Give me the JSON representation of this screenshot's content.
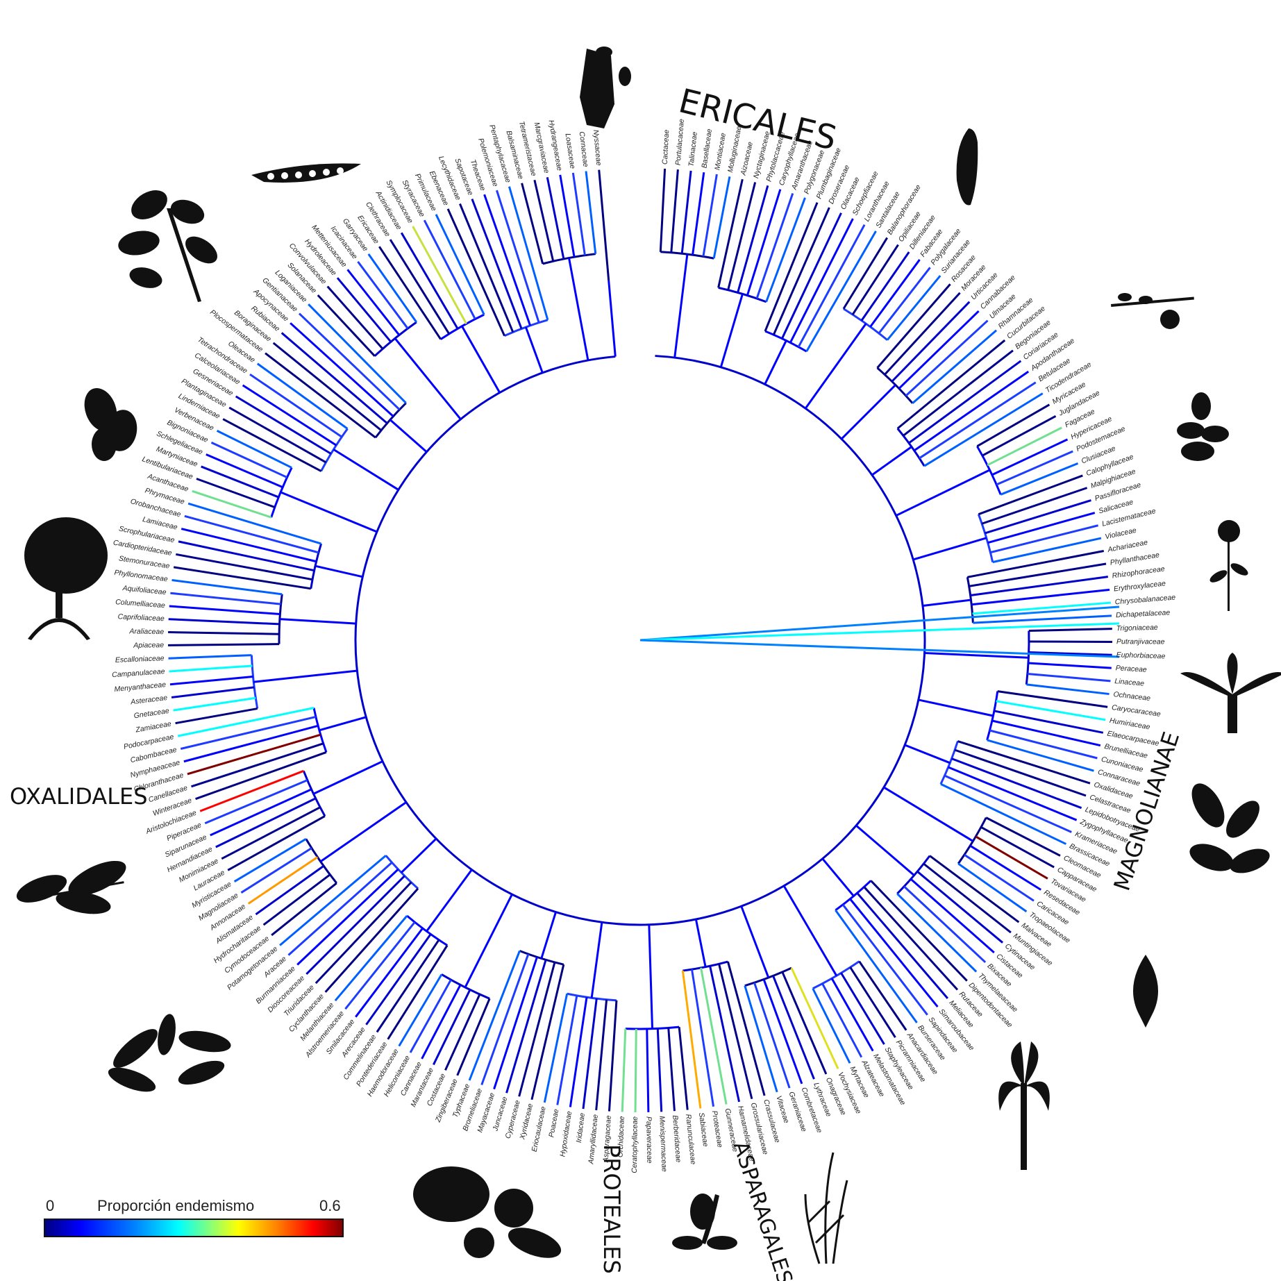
{
  "clades": {
    "ericales": "ERICALES",
    "oxalidales": "OXALIDALES",
    "magnolianae": "MAGNOLIANAE",
    "proteales": "PROTEALES",
    "asparagales": "ASPARAGALES"
  },
  "legend": {
    "min": "0",
    "max": "0.6",
    "title": "Proporción endemismo",
    "colors": [
      "#000080",
      "#0000ff",
      "#0080ff",
      "#00ffff",
      "#80ff80",
      "#ffff00",
      "#ff8000",
      "#ff0000",
      "#800000"
    ]
  },
  "families": [
    "Cactaceae",
    "Portulacaceae",
    "Talinaceae",
    "Basellaceae",
    "Montiaceae",
    "Molluginaceae",
    "Aizoaceae",
    "Nyctaginaceae",
    "Phytolaccaceae",
    "Caryophyllaceae",
    "Amaranthaceae",
    "Polygonaceae",
    "Plumbaginaceae",
    "Droseraceae",
    "Olacaceae",
    "Schoepfiaceae",
    "Loranthaceae",
    "Santalaceae",
    "Balanophoraceae",
    "Opiliaceae",
    "Dilleniaceae",
    "Fabaceae",
    "Polygalaceae",
    "Surianaceae",
    "Rosaceae",
    "Moraceae",
    "Urticaceae",
    "Cannabaceae",
    "Ulmaceae",
    "Rhamnaceae",
    "Cucurbitaceae",
    "Begoniaceae",
    "Coriariaceae",
    "Apodanthaceae",
    "Betulaceae",
    "Ticodendraceae",
    "Myricaceae",
    "Juglandaceae",
    "Fagaceae",
    "Hypericaceae",
    "Podostemaceae",
    "Clusiaceae",
    "Calophyllaceae",
    "Malpighiaceae",
    "Passifloraceae",
    "Salicaceae",
    "Lacistemataceae",
    "Violaceae",
    "Achariaceae",
    "Phyllanthaceae",
    "Rhizophoraceae",
    "Erythroxylaceae",
    "Chrysobalanaceae",
    "Dichapetalaceae",
    "Trigoniaceae",
    "Putranjivaceae",
    "Euphorbiaceae",
    "Peraceae",
    "Linaceae",
    "Ochnaceae",
    "Caryocaraceae",
    "Humiriaceae",
    "Elaeocarpaceae",
    "Brunelliaceae",
    "Cunoniaceae",
    "Connaraceae",
    "Oxalidaceae",
    "Celastraceae",
    "Lepidobotryaceae",
    "Zygophyllaceae",
    "Krameriaceae",
    "Brassicaceae",
    "Cleomaceae",
    "Capparaceae",
    "Tovariaceae",
    "Resedaceae",
    "Caricaceae",
    "Tropaeolaceae",
    "Malvaceae",
    "Muntingiaceae",
    "Cytinaceae",
    "Cistaceae",
    "Bixaceae",
    "Thymelaeaceae",
    "Dipentodontaceae",
    "Rutaceae",
    "Meliaceae",
    "Simaroubaceae",
    "Sapindaceae",
    "Burseraceae",
    "Anacardiaceae",
    "Picramniaceae",
    "Staphyleaceae",
    "Melastomataceae",
    "Alzateaceae",
    "Myrtaceae",
    "Vochysiaceae",
    "Onagraceae",
    "Lythraceae",
    "Combretaceae",
    "Geraniaceae",
    "Vitaceae",
    "Crassulaceae",
    "Grossulariaceae",
    "Hamamelidaceae",
    "Gunneraceae",
    "Proteaceae",
    "Sabiaceae",
    "Ranunculaceae",
    "Berberidaceae",
    "Menispermaceae",
    "Papaveraceae",
    "Ceratophyllaceae",
    "Orchidaceae",
    "Asparagaceae",
    "Amaryllidaceae",
    "Iridaceae",
    "Hypoxidaceae",
    "Poaceae",
    "Eriocaulaceae",
    "Xyridaceae",
    "Cyperaceae",
    "Juncaceae",
    "Mayacaceae",
    "Bromeliaceae",
    "Typhaceae",
    "Zingiberaceae",
    "Costaceae",
    "Marantaceae",
    "Cannaceae",
    "Heliconiaceae",
    "Haemodoraceae",
    "Pontederiaceae",
    "Commelinaceae",
    "Arecaceae",
    "Smilacaceae",
    "Alstroemeriaceae",
    "Melanthiaceae",
    "Cyclanthaceae",
    "Triuridaceae",
    "Dioscoreaceae",
    "Burmanniaceae",
    "Araceae",
    "Potamogetonaceae",
    "Cymodoceaceae",
    "Hydrocharitaceae",
    "Alismataceae",
    "Annonaceae",
    "Magnoliaceae",
    "Myristicaceae",
    "Lauraceae",
    "Monimiaceae",
    "Hernandiaceae",
    "Siparunaceae",
    "Piperaceae",
    "Aristolochiaceae",
    "Winteraceae",
    "Canellaceae",
    "Chloranthaceae",
    "Nymphaeaceae",
    "Cabombaceae",
    "Podocarpaceae",
    "Zamiaceae",
    "Gnetaceae",
    "Asteraceae",
    "Menyanthaceae",
    "Campanulaceae",
    "Escalloniaceae",
    "Apiaceae",
    "Araliaceae",
    "Caprifoliaceae",
    "Columelliaceae",
    "Aquifoliaceae",
    "Phyllonomaceae",
    "Stemonuraceae",
    "Cardiopteridaceae",
    "Scrophulariaceae",
    "Lamiaceae",
    "Orobanchaceae",
    "Phrymaceae",
    "Acanthaceae",
    "Lentibulariaceae",
    "Martyniaceae",
    "Schlegeliaceae",
    "Bignoniaceae",
    "Verbenaceae",
    "Linderniaceae",
    "Plantaginaceae",
    "Gesneriaceae",
    "Calceolariaceae",
    "Tetrachondraceae",
    "Oleaceae",
    "Plocospermataceae",
    "Boraginaceae",
    "Rubiaceae",
    "Apocynaceae",
    "Gentianaceae",
    "Loganiaceae",
    "Solanaceae",
    "Convolvulaceae",
    "Hydroleaceae",
    "Metteniusaceae",
    "Icacinaceae",
    "Garryaceae",
    "Ericaceae",
    "Clethraceae",
    "Actinidiaceae",
    "Symplocaceae",
    "Styracaceae",
    "Primulaceae",
    "Ebenaceae",
    "Lecythidaceae",
    "Sapotaceae",
    "Theaceae",
    "Polemoniaceae",
    "Pentaphylacaceae",
    "Balsaminaceae",
    "Tetrameristaceae",
    "Marcgraviaceae",
    "Hydrangeaceae",
    "Loasaceae",
    "Cornaceae",
    "Nyssaceae"
  ],
  "silhouettes": [
    "pea-pod",
    "leafy-branch",
    "seed-pods",
    "mangrove-tree",
    "flowering-twig",
    "compound-leaf",
    "fruit-cluster",
    "orchid-flower",
    "grass-stems",
    "palm-tree",
    "arum-spathe",
    "leaves",
    "cycad",
    "daisy-flower",
    "mint-plant",
    "berry-twig",
    "pepper-fruit",
    "cactus"
  ]
}
